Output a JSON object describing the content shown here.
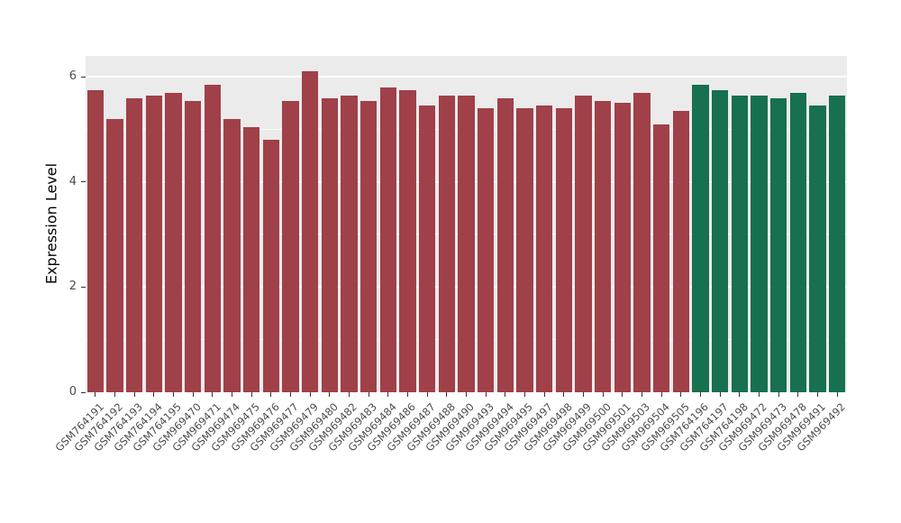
{
  "figure": {
    "background": "#FFFFFF",
    "panel_background": "#EBEBEB",
    "gridline_color": "#FFFFFF",
    "axis_text_color": "#4D4D4D",
    "tick_mark_color": "#333333"
  },
  "chart_data": {
    "type": "bar",
    "title": "",
    "xlabel": "",
    "ylabel": "Expression Level",
    "ylim": [
      0,
      6.4
    ],
    "yticks": [
      0,
      2,
      4,
      6
    ],
    "yticks_minor": [
      1,
      3,
      5
    ],
    "grid": true,
    "legend": "none",
    "categories": [
      "GSM764191",
      "GSM764192",
      "GSM764193",
      "GSM764194",
      "GSM764195",
      "GSM969470",
      "GSM969471",
      "GSM969474",
      "GSM969475",
      "GSM969476",
      "GSM969477",
      "GSM969479",
      "GSM969480",
      "GSM969482",
      "GSM969483",
      "GSM969484",
      "GSM969486",
      "GSM969487",
      "GSM969488",
      "GSM969490",
      "GSM969493",
      "GSM969494",
      "GSM969495",
      "GSM969497",
      "GSM969498",
      "GSM969499",
      "GSM969500",
      "GSM969501",
      "GSM969503",
      "GSM969504",
      "GSM969505",
      "GSM764196",
      "GSM764197",
      "GSM764198",
      "GSM969472",
      "GSM969473",
      "GSM969478",
      "GSM969491",
      "GSM969492"
    ],
    "values": [
      5.75,
      5.2,
      5.6,
      5.65,
      5.7,
      5.55,
      5.85,
      5.2,
      5.05,
      4.8,
      5.55,
      6.1,
      5.6,
      5.65,
      5.55,
      5.8,
      5.75,
      5.45,
      5.65,
      5.65,
      5.4,
      5.6,
      5.4,
      5.45,
      5.4,
      5.65,
      5.55,
      5.5,
      5.7,
      5.1,
      5.35,
      5.85,
      5.75,
      5.65,
      5.65,
      5.6,
      5.7,
      5.45,
      5.65
    ],
    "groups": [
      "group1",
      "group1",
      "group1",
      "group1",
      "group1",
      "group1",
      "group1",
      "group1",
      "group1",
      "group1",
      "group1",
      "group1",
      "group1",
      "group1",
      "group1",
      "group1",
      "group1",
      "group1",
      "group1",
      "group1",
      "group1",
      "group1",
      "group1",
      "group1",
      "group1",
      "group1",
      "group1",
      "group1",
      "group1",
      "group1",
      "group1",
      "group2",
      "group2",
      "group2",
      "group2",
      "group2",
      "group2",
      "group2",
      "group2"
    ],
    "group_colors": {
      "group1": "#A04048",
      "group2": "#177050"
    },
    "bar_width_fraction": 0.85
  }
}
